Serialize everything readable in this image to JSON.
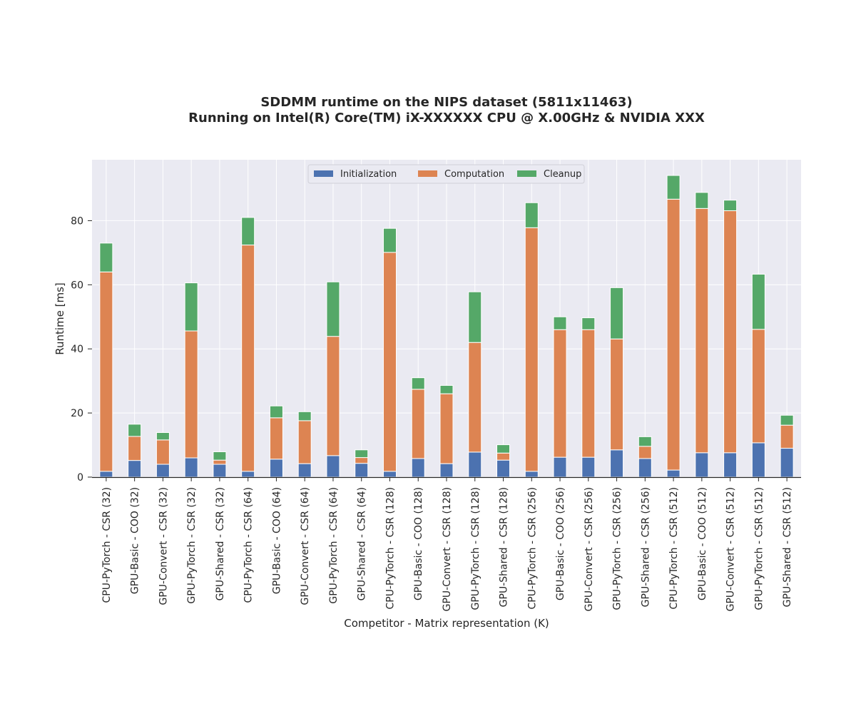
{
  "chart_data": {
    "type": "bar",
    "stacked": true,
    "title": "SDDMM runtime on the NIPS dataset (5811x11463)",
    "subtitle": "Running on Intel(R) Core(TM) iX-XXXXXX CPU @ X.00GHz & NVIDIA XXX",
    "xlabel": "Competitor - Matrix representation (K)",
    "ylabel": "Runtime [ms]",
    "ylim": [
      0,
      99
    ],
    "yticks": [
      0,
      20,
      40,
      60,
      80
    ],
    "grid": true,
    "legend_position": "top-center",
    "categories": [
      "CPU-PyTorch - CSR (32)",
      "GPU-Basic - COO (32)",
      "GPU-Convert - CSR (32)",
      "GPU-PyTorch - CSR (32)",
      "GPU-Shared - CSR (32)",
      "CPU-PyTorch - CSR (64)",
      "GPU-Basic - COO (64)",
      "GPU-Convert - CSR (64)",
      "GPU-PyTorch - CSR (64)",
      "GPU-Shared - CSR (64)",
      "CPU-PyTorch - CSR (128)",
      "GPU-Basic - COO (128)",
      "GPU-Convert - CSR (128)",
      "GPU-PyTorch - CSR (128)",
      "GPU-Shared - CSR (128)",
      "CPU-PyTorch - CSR (256)",
      "GPU-Basic - COO (256)",
      "GPU-Convert - CSR (256)",
      "GPU-PyTorch - CSR (256)",
      "GPU-Shared - CSR (256)",
      "CPU-PyTorch - CSR (512)",
      "GPU-Basic - COO (512)",
      "GPU-Convert - CSR (512)",
      "GPU-PyTorch - CSR (512)",
      "GPU-Shared - CSR (512)"
    ],
    "series": [
      {
        "name": "Initialization",
        "color": "#4c72b0",
        "values": [
          1.8,
          5.2,
          4.0,
          6.0,
          4.0,
          1.8,
          5.6,
          4.2,
          6.7,
          4.3,
          1.8,
          5.8,
          4.2,
          7.8,
          5.3,
          1.8,
          6.2,
          6.2,
          8.5,
          5.8,
          2.2,
          7.6,
          7.6,
          10.7,
          9.0
        ]
      },
      {
        "name": "Computation",
        "color": "#dd8452",
        "values": [
          62.2,
          7.5,
          7.6,
          39.6,
          1.3,
          70.6,
          12.9,
          13.4,
          37.2,
          1.8,
          68.3,
          21.6,
          21.8,
          34.2,
          2.2,
          76.0,
          39.8,
          39.8,
          34.6,
          3.8,
          84.5,
          76.2,
          75.5,
          35.4,
          7.2
        ]
      },
      {
        "name": "Cleanup",
        "color": "#55a868",
        "values": [
          9.0,
          3.8,
          2.3,
          15.0,
          2.6,
          8.6,
          3.7,
          2.8,
          17.0,
          2.4,
          7.5,
          3.6,
          2.6,
          15.8,
          2.6,
          7.8,
          4.0,
          3.7,
          16.0,
          3.0,
          7.4,
          5.0,
          3.3,
          17.2,
          3.1
        ]
      }
    ]
  }
}
